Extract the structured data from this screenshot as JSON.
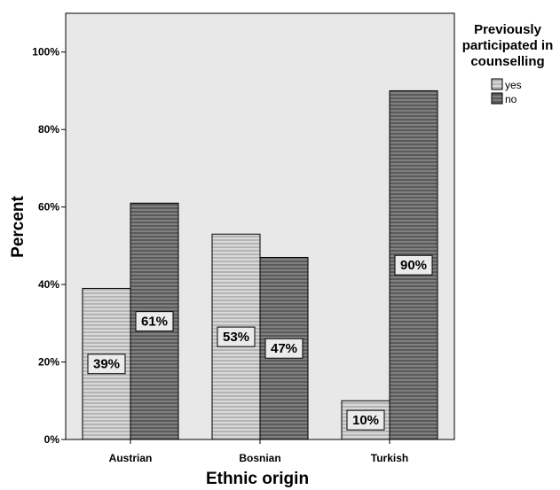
{
  "chart_data": {
    "type": "bar",
    "xlabel": "Ethnic origin",
    "ylabel": "Percent",
    "categories": [
      "Austrian",
      "Bosnian",
      "Turkish"
    ],
    "series": [
      {
        "name": "yes",
        "values": [
          39,
          53,
          10
        ],
        "labels": [
          "39%",
          "53%",
          "10%"
        ],
        "color": "#b4b4b4"
      },
      {
        "name": "no",
        "values": [
          61,
          47,
          90
        ],
        "labels": [
          "61%",
          "47%",
          "90%"
        ],
        "color": "#5a5a5a"
      }
    ],
    "ylim": [
      0,
      110
    ],
    "yticks": [
      0,
      20,
      40,
      60,
      80,
      100
    ],
    "ytick_labels": [
      "0%",
      "20%",
      "40%",
      "60%",
      "80%",
      "100%"
    ],
    "legend": {
      "title": [
        "Previously",
        "participated in",
        "counselling"
      ],
      "placement": "top-right, outside plot"
    },
    "plot_background": "#e8e8e8",
    "grid": false
  }
}
